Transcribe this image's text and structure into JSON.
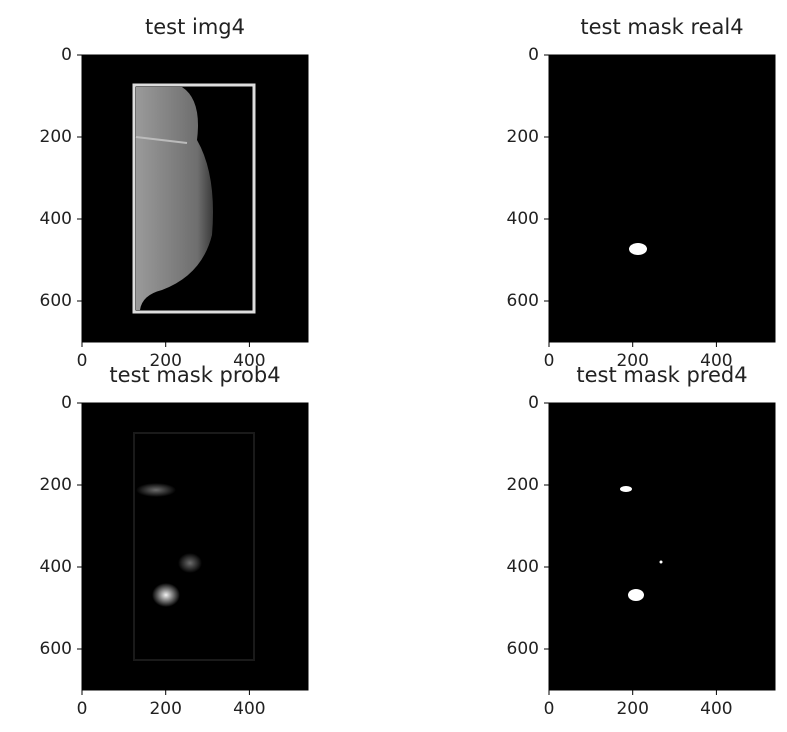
{
  "chart_data": [
    {
      "type": "image",
      "title": "test img4",
      "xlim": [
        0,
        540
      ],
      "ylim": [
        700,
        0
      ],
      "xticks": [
        0,
        200,
        400
      ],
      "yticks": [
        0,
        200,
        400,
        600
      ]
    },
    {
      "type": "image",
      "title": "test mask real4",
      "xlim": [
        0,
        540
      ],
      "ylim": [
        700,
        0
      ],
      "xticks": [
        0,
        200,
        400
      ],
      "yticks": [
        0,
        200,
        400,
        600
      ]
    },
    {
      "type": "image",
      "title": "test mask prob4",
      "xlim": [
        0,
        540
      ],
      "ylim": [
        700,
        0
      ],
      "xticks": [
        0,
        200,
        400
      ],
      "yticks": [
        0,
        200,
        400,
        600
      ]
    },
    {
      "type": "image",
      "title": "test mask pred4",
      "xlim": [
        0,
        540
      ],
      "ylim": [
        700,
        0
      ],
      "xticks": [
        0,
        200,
        400
      ],
      "yticks": [
        0,
        200,
        400,
        600
      ]
    }
  ]
}
